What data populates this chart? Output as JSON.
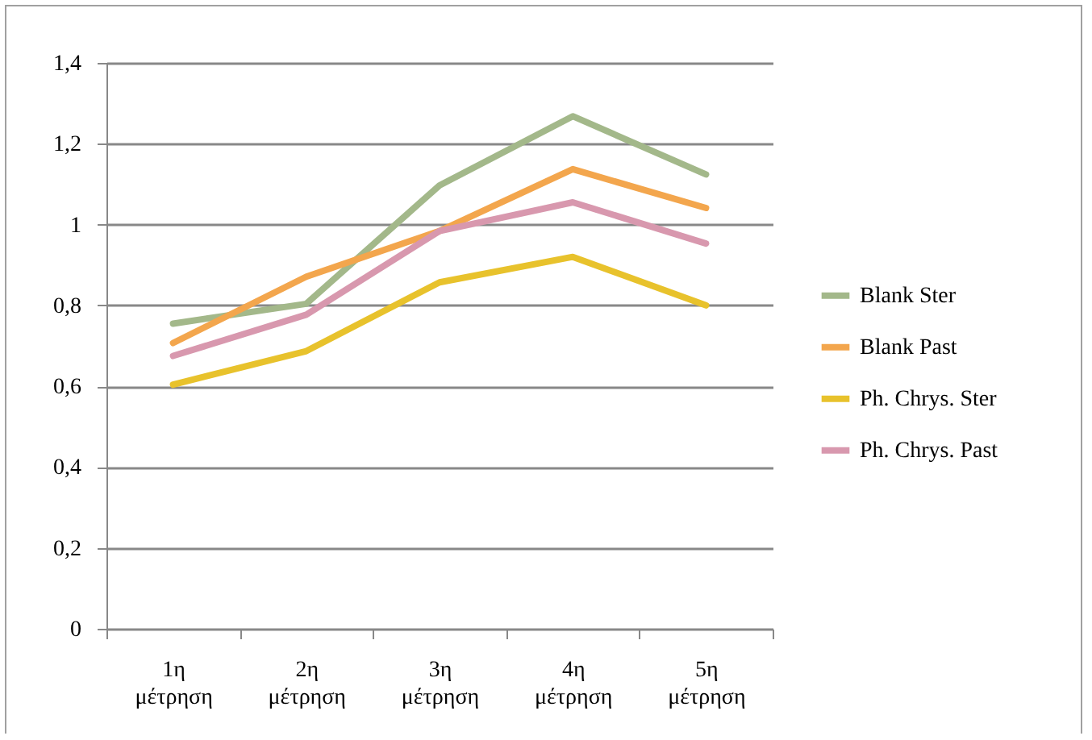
{
  "chart_data": {
    "type": "line",
    "categories": [
      "1η μέτρηση",
      "2η μέτρηση",
      "3η μέτρηση",
      "4η μέτρηση",
      "5η μέτρηση"
    ],
    "series": [
      {
        "name": "Blank Ster",
        "color": "#a3b88a",
        "values": [
          0.755,
          0.804,
          1.097,
          1.268,
          1.124
        ]
      },
      {
        "name": "Blank Past",
        "color": "#f3a64d",
        "values": [
          0.707,
          0.871,
          0.984,
          1.137,
          1.041
        ]
      },
      {
        "name": "Ph. Chrys. Ster",
        "color": "#e8c22c",
        "values": [
          0.604,
          0.687,
          0.857,
          0.92,
          0.8
        ]
      },
      {
        "name": "Ph. Chrys. Past",
        "color": "#d898ae",
        "values": [
          0.675,
          0.777,
          0.984,
          1.055,
          0.953
        ]
      }
    ],
    "ylim": [
      0,
      1.4
    ],
    "yticks": [
      0,
      {
        "value": 0.2,
        "label": "0,2"
      },
      {
        "value": 0.4,
        "label": "0,4"
      },
      {
        "value": 0.6,
        "label": "0,6"
      },
      {
        "value": 0.8,
        "label": "0,8"
      },
      1,
      {
        "value": 1.2,
        "label": "1,2"
      },
      {
        "value": 1.4,
        "label": "1,4"
      }
    ],
    "grid": "y",
    "legend": "right",
    "marker": "none",
    "line_style": "solid"
  }
}
